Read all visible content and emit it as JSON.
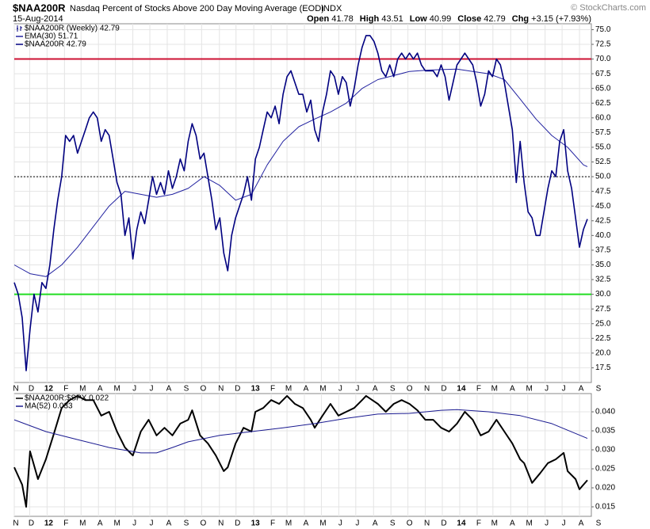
{
  "header": {
    "symbol": "$NAA200R",
    "title": "Nasdaq Percent of Stocks Above 200 Day Moving Average (EOD)",
    "exchange": "INDX",
    "date": "15-Aug-2014",
    "copyright": "© StockCharts.com",
    "stats": [
      {
        "label": "Open",
        "value": 41.78
      },
      {
        "label": "High",
        "value": 43.51
      },
      {
        "label": "Low",
        "value": 40.99
      },
      {
        "label": "Close",
        "value": 42.79
      },
      {
        "label": "Chg",
        "value": "+3.15 (+7.93%)"
      }
    ]
  },
  "chart_data": [
    {
      "type": "line",
      "legend_title": "$NAA200R (Weekly) 42.79",
      "xlim": [
        0,
        146
      ],
      "ylim": [
        15,
        76
      ],
      "xticks": [
        {
          "value": 0,
          "label": "N"
        },
        {
          "value": 3.9,
          "label": "D"
        },
        {
          "value": 8.3,
          "label": "12"
        },
        {
          "value": 12.7,
          "label": "F"
        },
        {
          "value": 16.9,
          "label": "M"
        },
        {
          "value": 21.3,
          "label": "A"
        },
        {
          "value": 25.6,
          "label": "M"
        },
        {
          "value": 30,
          "label": "J"
        },
        {
          "value": 34.3,
          "label": "J"
        },
        {
          "value": 38.7,
          "label": "A"
        },
        {
          "value": 43.1,
          "label": "S"
        },
        {
          "value": 47.4,
          "label": "O"
        },
        {
          "value": 51.9,
          "label": "N"
        },
        {
          "value": 56.1,
          "label": "D"
        },
        {
          "value": 60.6,
          "label": "13"
        },
        {
          "value": 65,
          "label": "F"
        },
        {
          "value": 69,
          "label": "M"
        },
        {
          "value": 73.4,
          "label": "A"
        },
        {
          "value": 77.7,
          "label": "M"
        },
        {
          "value": 82.1,
          "label": "J"
        },
        {
          "value": 86.4,
          "label": "J"
        },
        {
          "value": 90.9,
          "label": "A"
        },
        {
          "value": 95.3,
          "label": "S"
        },
        {
          "value": 99.6,
          "label": "O"
        },
        {
          "value": 104,
          "label": "N"
        },
        {
          "value": 108.3,
          "label": "D"
        },
        {
          "value": 112.7,
          "label": "14"
        },
        {
          "value": 117.1,
          "label": "F"
        },
        {
          "value": 121.1,
          "label": "M"
        },
        {
          "value": 125.6,
          "label": "A"
        },
        {
          "value": 129.9,
          "label": "M"
        },
        {
          "value": 134.3,
          "label": "J"
        },
        {
          "value": 138.6,
          "label": "J"
        },
        {
          "value": 143,
          "label": "A"
        },
        {
          "value": 147.4,
          "label": "S"
        }
      ],
      "yticks": [
        17.5,
        {
          "value": 20,
          "label": "20.0"
        },
        22.5,
        {
          "value": 25,
          "label": "25.0"
        },
        27.5,
        {
          "value": 30,
          "label": "30.0"
        },
        32.5,
        {
          "value": 35,
          "label": "35.0"
        },
        37.5,
        {
          "value": 40,
          "label": "40.0"
        },
        42.5,
        {
          "value": 45,
          "label": "45.0"
        },
        47.5,
        {
          "value": 50,
          "label": "50.0"
        },
        52.5,
        {
          "value": 55,
          "label": "55.0"
        },
        57.5,
        {
          "value": 60,
          "label": "60.0"
        },
        62.5,
        {
          "value": 65,
          "label": "65.0"
        },
        67.5,
        {
          "value": 70,
          "label": "70.0"
        },
        72.5,
        {
          "value": 75,
          "label": "75.0"
        }
      ],
      "grid": true,
      "reference_lines": [
        {
          "value": 70,
          "color": "#cc1133"
        },
        {
          "value": 30,
          "color": "#22dd22"
        },
        {
          "value": 50,
          "color": "#000000",
          "style": "dotted"
        }
      ],
      "series": [
        {
          "name": "EMA(30) 51.71",
          "color": "#2222a0",
          "width": 1,
          "x": [
            0,
            4,
            8,
            12,
            16,
            20,
            24,
            28,
            32,
            36,
            40,
            44,
            48,
            52,
            56,
            60,
            64,
            68,
            72,
            76,
            80,
            84,
            88,
            92,
            96,
            100,
            104,
            108,
            112,
            116,
            120,
            124,
            128,
            132,
            136,
            140,
            144,
            145
          ],
          "values": [
            35,
            33.5,
            33,
            35,
            38,
            41.5,
            45,
            47.5,
            47,
            46.5,
            47,
            48,
            50,
            48.5,
            46,
            47,
            52,
            56,
            58.5,
            59.8,
            61,
            62.5,
            65,
            66.5,
            67.2,
            67.9,
            68.1,
            68.2,
            68.3,
            67.9,
            67.5,
            66.5,
            63.2,
            59.8,
            57,
            55,
            52,
            51.71
          ]
        },
        {
          "name": "$NAA200R 42.79",
          "color": "#000080",
          "width": 1.6,
          "x": [
            0,
            1,
            2,
            3,
            4,
            5,
            6,
            7,
            8,
            9,
            10,
            11,
            12,
            13,
            14,
            15,
            16,
            17,
            18,
            19,
            20,
            21,
            22,
            23,
            24,
            25,
            26,
            27,
            28,
            29,
            30,
            31,
            32,
            33,
            34,
            35,
            36,
            37,
            38,
            39,
            40,
            41,
            42,
            43,
            44,
            45,
            46,
            47,
            48,
            49,
            50,
            51,
            52,
            53,
            54,
            55,
            56,
            57,
            58,
            59,
            60,
            61,
            62,
            63,
            64,
            65,
            66,
            67,
            68,
            69,
            70,
            71,
            72,
            73,
            74,
            75,
            76,
            77,
            78,
            79,
            80,
            81,
            82,
            83,
            84,
            85,
            86,
            87,
            88,
            89,
            90,
            91,
            92,
            93,
            94,
            95,
            96,
            97,
            98,
            99,
            100,
            101,
            102,
            103,
            104,
            105,
            106,
            107,
            108,
            109,
            110,
            111,
            112,
            113,
            114,
            115,
            116,
            117,
            118,
            119,
            120,
            121,
            122,
            123,
            124,
            125,
            126,
            127,
            128,
            129,
            130,
            131,
            132,
            133,
            134,
            135,
            136,
            137,
            138,
            139,
            140,
            141,
            142,
            143,
            144,
            145
          ],
          "values": [
            32,
            30,
            26,
            17,
            24,
            30,
            27,
            32,
            31,
            35,
            41,
            46,
            50,
            57,
            56,
            57,
            54,
            56,
            58,
            60,
            61,
            60,
            56,
            58,
            57,
            53,
            49,
            47,
            40,
            43,
            36,
            41,
            44,
            42,
            46,
            50,
            47,
            49,
            47,
            51,
            48,
            50,
            53,
            51,
            56,
            59,
            57,
            53,
            54,
            50,
            46,
            41,
            43,
            37,
            34,
            40,
            43,
            45,
            47,
            50,
            46,
            53,
            55,
            58,
            61,
            60,
            62,
            59,
            64,
            67,
            68,
            66,
            64,
            64,
            61,
            63,
            58,
            56,
            61,
            64,
            68,
            67,
            64,
            67,
            66,
            62,
            65,
            69,
            72,
            74,
            74,
            73,
            71,
            68,
            67,
            69,
            67,
            70,
            71,
            70,
            71,
            70,
            71,
            69,
            68,
            68,
            68,
            67,
            69,
            67,
            63,
            66,
            69,
            70,
            71,
            70,
            69,
            66,
            62,
            64,
            68,
            67,
            70,
            69,
            66,
            62,
            58,
            49,
            56,
            49,
            44,
            43,
            40,
            40,
            44,
            48,
            51,
            50,
            56,
            58,
            51,
            48,
            43,
            38,
            41,
            42.79
          ]
        }
      ]
    },
    {
      "type": "line",
      "xlim": [
        0,
        146
      ],
      "ylim": [
        0.0125,
        0.0448
      ],
      "xticks": [
        {
          "value": 0,
          "label": "N"
        },
        {
          "value": 3.9,
          "label": "D"
        },
        {
          "value": 8.3,
          "label": "12"
        },
        {
          "value": 12.7,
          "label": "F"
        },
        {
          "value": 16.9,
          "label": "M"
        },
        {
          "value": 21.3,
          "label": "A"
        },
        {
          "value": 25.6,
          "label": "M"
        },
        {
          "value": 30,
          "label": "J"
        },
        {
          "value": 34.3,
          "label": "J"
        },
        {
          "value": 38.7,
          "label": "A"
        },
        {
          "value": 43.1,
          "label": "S"
        },
        {
          "value": 47.4,
          "label": "O"
        },
        {
          "value": 51.9,
          "label": "N"
        },
        {
          "value": 56.1,
          "label": "D"
        },
        {
          "value": 60.6,
          "label": "13"
        },
        {
          "value": 65,
          "label": "F"
        },
        {
          "value": 69,
          "label": "M"
        },
        {
          "value": 73.4,
          "label": "A"
        },
        {
          "value": 77.7,
          "label": "M"
        },
        {
          "value": 82.1,
          "label": "J"
        },
        {
          "value": 86.4,
          "label": "J"
        },
        {
          "value": 90.9,
          "label": "A"
        },
        {
          "value": 95.3,
          "label": "S"
        },
        {
          "value": 99.6,
          "label": "O"
        },
        {
          "value": 104,
          "label": "N"
        },
        {
          "value": 108.3,
          "label": "D"
        },
        {
          "value": 112.7,
          "label": "14"
        },
        {
          "value": 117.1,
          "label": "F"
        },
        {
          "value": 121.1,
          "label": "M"
        },
        {
          "value": 125.6,
          "label": "A"
        },
        {
          "value": 129.9,
          "label": "M"
        },
        {
          "value": 134.3,
          "label": "J"
        },
        {
          "value": 138.6,
          "label": "J"
        },
        {
          "value": 143,
          "label": "A"
        },
        {
          "value": 147.4,
          "label": "S"
        }
      ],
      "yticks": [
        {
          "value": 0.015,
          "label": "0.015"
        },
        {
          "value": 0.02,
          "label": "0.020"
        },
        {
          "value": 0.025,
          "label": "0.025"
        },
        {
          "value": 0.03,
          "label": "0.030"
        },
        {
          "value": 0.035,
          "label": "0.035"
        },
        {
          "value": 0.04,
          "label": "0.040"
        }
      ],
      "grid": true,
      "series": [
        {
          "name": "$NAA200R:$SPX 0.022",
          "color": "#000000",
          "width": 2,
          "x": [
            0,
            2,
            3,
            4,
            6,
            8,
            10,
            12,
            14,
            16,
            18,
            20,
            22,
            24,
            26,
            28,
            30,
            32,
            34,
            36,
            38,
            40,
            42,
            44,
            45,
            47,
            49,
            51,
            53,
            54,
            56,
            58,
            60,
            61,
            63,
            65,
            67,
            69,
            71,
            73,
            75,
            76,
            78,
            80,
            82,
            84,
            86,
            88,
            89,
            92,
            94,
            96,
            98,
            100,
            102,
            104,
            106,
            108,
            110,
            112,
            114,
            116,
            118,
            120,
            122,
            124,
            126,
            128,
            129,
            131,
            133,
            135,
            137,
            139,
            140,
            142,
            143,
            145
          ],
          "values": [
            0.0254,
            0.0208,
            0.015,
            0.0296,
            0.0223,
            0.0275,
            0.0342,
            0.041,
            0.0431,
            0.0442,
            0.0431,
            0.0431,
            0.039,
            0.04,
            0.0348,
            0.0306,
            0.0285,
            0.0348,
            0.0379,
            0.0338,
            0.0358,
            0.0338,
            0.0369,
            0.0379,
            0.0404,
            0.0338,
            0.0317,
            0.0285,
            0.0244,
            0.0254,
            0.0317,
            0.0358,
            0.0348,
            0.04,
            0.041,
            0.0431,
            0.0421,
            0.0442,
            0.0421,
            0.041,
            0.0379,
            0.0358,
            0.039,
            0.0421,
            0.039,
            0.04,
            0.041,
            0.0431,
            0.0442,
            0.0421,
            0.04,
            0.0421,
            0.0431,
            0.0421,
            0.0404,
            0.0379,
            0.0379,
            0.0358,
            0.0348,
            0.0369,
            0.04,
            0.0379,
            0.0338,
            0.0348,
            0.0379,
            0.0348,
            0.0317,
            0.0275,
            0.0265,
            0.0213,
            0.0238,
            0.0265,
            0.0275,
            0.0292,
            0.0244,
            0.0223,
            0.0196,
            0.022
          ]
        },
        {
          "name": "MA(52) 0.033",
          "color": "#1a1a90",
          "width": 1,
          "x": [
            0,
            8,
            16,
            24,
            32,
            36,
            40,
            44,
            52,
            60,
            68,
            76,
            84,
            92,
            100,
            108,
            112,
            120,
            128,
            136,
            145
          ],
          "values": [
            0.0379,
            0.0348,
            0.0327,
            0.0306,
            0.0292,
            0.0292,
            0.0306,
            0.0321,
            0.0338,
            0.0348,
            0.0358,
            0.0369,
            0.0383,
            0.0394,
            0.0396,
            0.0404,
            0.0406,
            0.04,
            0.039,
            0.0369,
            0.033
          ]
        }
      ]
    }
  ]
}
